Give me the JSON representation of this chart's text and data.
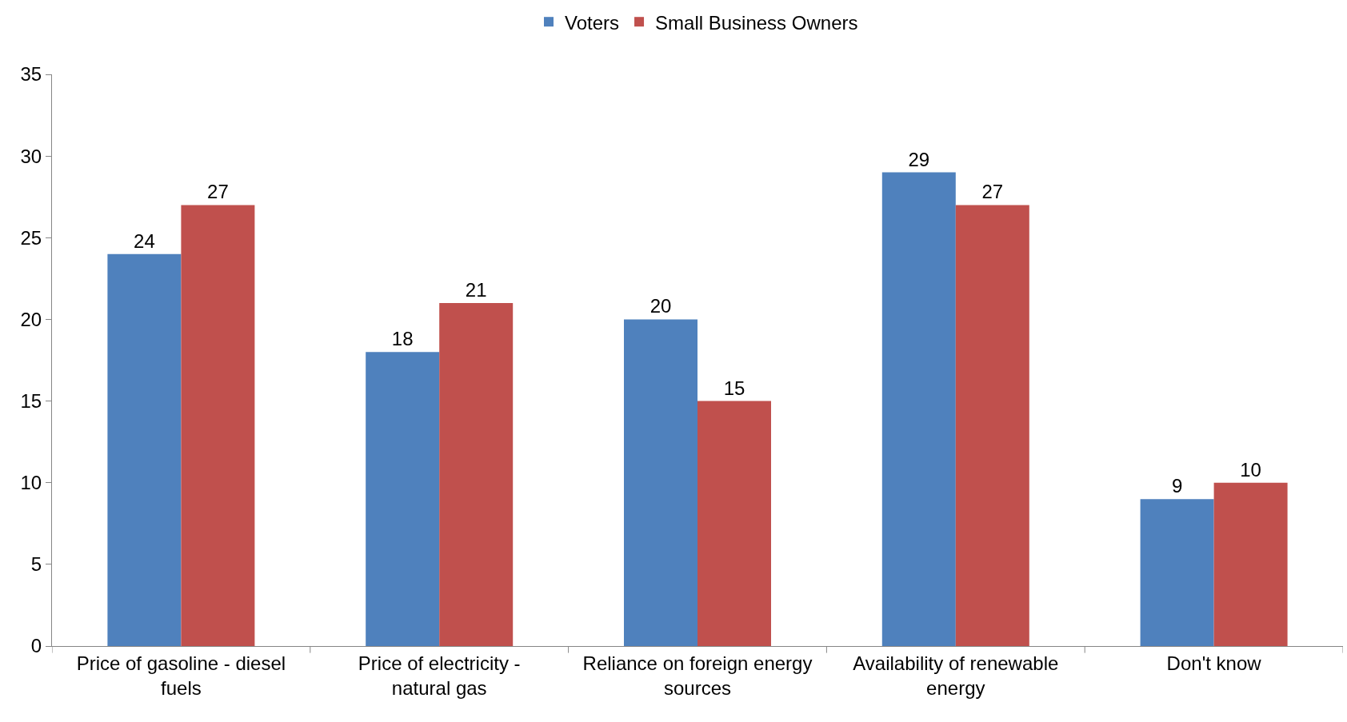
{
  "chart_data": {
    "type": "bar",
    "categories": [
      "Price of gasoline - diesel fuels",
      "Price of electricity - natural gas",
      "Reliance on foreign energy sources",
      "Availability of renewable energy",
      "Don't know"
    ],
    "series": [
      {
        "name": "Voters",
        "color": "#4f81bd",
        "values": [
          24,
          18,
          20,
          29,
          9
        ]
      },
      {
        "name": "Small Business Owners",
        "color": "#c0504d",
        "values": [
          27,
          21,
          15,
          27,
          10
        ]
      }
    ],
    "ylim": [
      0,
      35
    ],
    "yticks": [
      0,
      5,
      10,
      15,
      20,
      25,
      30,
      35
    ],
    "legend": "top",
    "data_labels": true
  }
}
